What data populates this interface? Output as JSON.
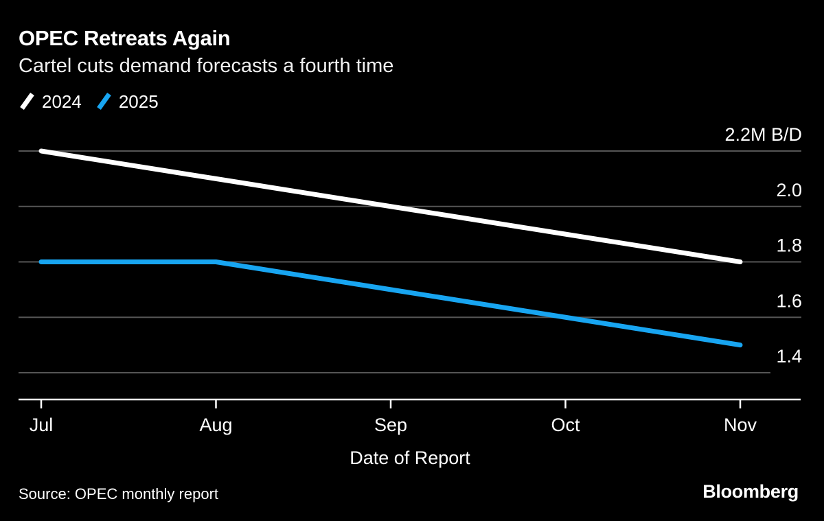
{
  "header": {
    "title": "OPEC Retreats Again",
    "subtitle": "Cartel cuts demand forecasts a fourth time"
  },
  "legend": [
    {
      "label": "2024",
      "color": "#ffffff"
    },
    {
      "label": "2025",
      "color": "#18a5f1"
    }
  ],
  "chart_data": {
    "type": "line",
    "categories": [
      "Jul",
      "Aug",
      "Sep",
      "Oct",
      "Nov"
    ],
    "series": [
      {
        "name": "2024",
        "color": "#ffffff",
        "values": [
          2.2,
          2.1,
          2.0,
          1.9,
          1.8
        ]
      },
      {
        "name": "2025",
        "color": "#18a5f1",
        "values": [
          1.8,
          1.8,
          1.7,
          1.6,
          1.5
        ]
      }
    ],
    "xlabel": "Date of Report",
    "ylabel": "",
    "y_axis": {
      "min": 1.4,
      "max": 2.2,
      "ticks": [
        2.2,
        2.0,
        1.8,
        1.6,
        1.4
      ],
      "tick_labels": [
        "2.2M B/D",
        "2.0",
        "1.8",
        "1.6",
        "1.4"
      ],
      "unit": "M B/D",
      "side": "right"
    },
    "grid": true,
    "legend_position": "top-left",
    "title": "OPEC Retreats Again",
    "subtitle": "Cartel cuts demand forecasts a fourth time"
  },
  "footer": {
    "source": "Source: OPEC monthly report",
    "brand": "Bloomberg"
  },
  "colors": {
    "background": "#000000",
    "text": "#ffffff",
    "gridline": "#555555",
    "axis": "#ffffff",
    "series_2024": "#ffffff",
    "series_2025": "#18a5f1"
  }
}
